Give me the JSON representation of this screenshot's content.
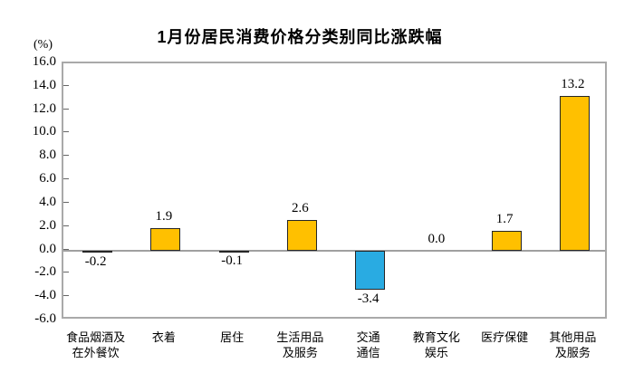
{
  "chart_data": {
    "type": "bar",
    "title": "1月份居民消费价格分类别同比涨跌幅",
    "ylabel_unit": "(%)",
    "ylim": [
      -6.0,
      16.0
    ],
    "yticks": [
      "16.0",
      "14.0",
      "12.0",
      "10.0",
      "8.0",
      "6.0",
      "4.0",
      "2.0",
      "0.0",
      "-2.0",
      "-4.0",
      "-6.0"
    ],
    "categories": [
      {
        "name": "食品烟酒及在外餐饮",
        "lines": [
          "食品烟酒及",
          "在外餐饮"
        ]
      },
      {
        "name": "衣着",
        "lines": [
          "衣着"
        ]
      },
      {
        "name": "居住",
        "lines": [
          "居住"
        ]
      },
      {
        "name": "生活用品及服务",
        "lines": [
          "生活用品",
          "及服务"
        ]
      },
      {
        "name": "交通通信",
        "lines": [
          "交通",
          "通信"
        ]
      },
      {
        "name": "教育文化娱乐",
        "lines": [
          "教育文化",
          "娱乐"
        ]
      },
      {
        "name": "医疗保健",
        "lines": [
          "医疗保健"
        ]
      },
      {
        "name": "其他用品及服务",
        "lines": [
          "其他用品",
          "及服务"
        ]
      }
    ],
    "values": [
      -0.2,
      1.9,
      -0.1,
      2.6,
      -3.4,
      0.0,
      1.7,
      13.2
    ],
    "value_labels": [
      "-0.2",
      "1.9",
      "-0.1",
      "2.6",
      "-3.4",
      "0.0",
      "1.7",
      "13.2"
    ],
    "colors": {
      "positive_bar": "#FFC000",
      "negative_bar": "#29ABE2",
      "bar_border": "#262626",
      "plot_border": "#A9A9A9",
      "zero_line": "#A0A0A0",
      "text": "#000000"
    },
    "grid": false,
    "legend": null
  }
}
